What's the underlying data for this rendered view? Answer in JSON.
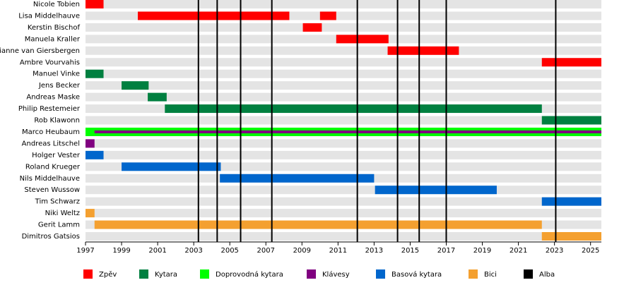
{
  "chart_data": {
    "type": "timeline",
    "roles": [
      {
        "name": "Zpěv",
        "color": "#ff0000"
      },
      {
        "name": "Kytara",
        "color": "#008040"
      },
      {
        "name": "Doprovodná kytara",
        "color": "#00ff00"
      },
      {
        "name": "Klávesy",
        "color": "#800080"
      },
      {
        "name": "Basová kytara",
        "color": "#0066cc"
      },
      {
        "name": "Bici",
        "color": "#f4a030"
      },
      {
        "name": "Alba",
        "color": "#000000"
      }
    ],
    "members": [
      {
        "name": "Nicole Tobien",
        "periods": [
          {
            "role": 0,
            "start": 1997,
            "end": 1998
          }
        ]
      },
      {
        "name": "Lisa Middelhauve",
        "periods": [
          {
            "role": 0,
            "start": 1999.9,
            "end": 2008.3
          },
          {
            "role": 0,
            "start": 2010.0,
            "end": 2010.9
          }
        ]
      },
      {
        "name": "Kerstin Bischof",
        "periods": [
          {
            "role": 0,
            "start": 2009.05,
            "end": 2010.1
          }
        ]
      },
      {
        "name": "Manuela Kraller",
        "periods": [
          {
            "role": 0,
            "start": 2010.9,
            "end": 2013.8
          }
        ]
      },
      {
        "name": "Dianne van Giersbergen",
        "periods": [
          {
            "role": 0,
            "start": 2013.75,
            "end": 2017.7
          }
        ]
      },
      {
        "name": "Ambre Vourvahis",
        "periods": [
          {
            "role": 0,
            "start": 2022.3,
            "end": 2025.6
          }
        ]
      },
      {
        "name": "Manuel Vinke",
        "periods": [
          {
            "role": 1,
            "start": 1997,
            "end": 1998
          }
        ]
      },
      {
        "name": "Jens Becker",
        "periods": [
          {
            "role": 1,
            "start": 1999,
            "end": 2000.5
          }
        ]
      },
      {
        "name": "Andreas Maske",
        "periods": [
          {
            "role": 1,
            "start": 2000.45,
            "end": 2001.5
          }
        ]
      },
      {
        "name": "Philip Restemeier",
        "periods": [
          {
            "role": 1,
            "start": 2001.4,
            "end": 2022.3
          }
        ]
      },
      {
        "name": "Rob Klawonn",
        "periods": [
          {
            "role": 1,
            "start": 2022.3,
            "end": 2025.6
          }
        ]
      },
      {
        "name": "Marco Heubaum",
        "periods": [
          {
            "role": 2,
            "start": 1997,
            "end": 2025.6
          },
          {
            "role": 3,
            "start": 1997.5,
            "end": 2025.6
          }
        ]
      },
      {
        "name": "Andreas Litschel",
        "periods": [
          {
            "role": 3,
            "start": 1997,
            "end": 1997.5
          }
        ]
      },
      {
        "name": "Holger Vester",
        "periods": [
          {
            "role": 4,
            "start": 1997,
            "end": 1998
          }
        ]
      },
      {
        "name": "Roland Krueger",
        "periods": [
          {
            "role": 4,
            "start": 1999,
            "end": 2004.5
          }
        ]
      },
      {
        "name": "Nils Middelhauve",
        "periods": [
          {
            "role": 4,
            "start": 2004.45,
            "end": 2013.0
          }
        ]
      },
      {
        "name": "Steven Wussow",
        "periods": [
          {
            "role": 4,
            "start": 2013.05,
            "end": 2019.8
          }
        ]
      },
      {
        "name": "Tim Schwarz",
        "periods": [
          {
            "role": 4,
            "start": 2022.3,
            "end": 2025.6
          }
        ]
      },
      {
        "name": "Niki Weltz",
        "periods": [
          {
            "role": 5,
            "start": 1997,
            "end": 1997.5
          }
        ]
      },
      {
        "name": "Gerit Lamm",
        "periods": [
          {
            "role": 5,
            "start": 1997.5,
            "end": 2022.3
          }
        ]
      },
      {
        "name": "Dimitros Gatsios",
        "periods": [
          {
            "role": 5,
            "start": 2022.3,
            "end": 2025.6
          }
        ]
      }
    ],
    "albums": [
      2003.26,
      2004.3,
      2005.6,
      2007.33,
      2012.07,
      2014.3,
      2015.5,
      2017.0,
      2023.07
    ],
    "albums_role": 6,
    "xlim": [
      1997,
      2025.6
    ],
    "xticks": [
      1997,
      1999,
      2001,
      2003,
      2005,
      2007,
      2009,
      2011,
      2013,
      2015,
      2017,
      2019,
      2021,
      2023,
      2025
    ]
  }
}
